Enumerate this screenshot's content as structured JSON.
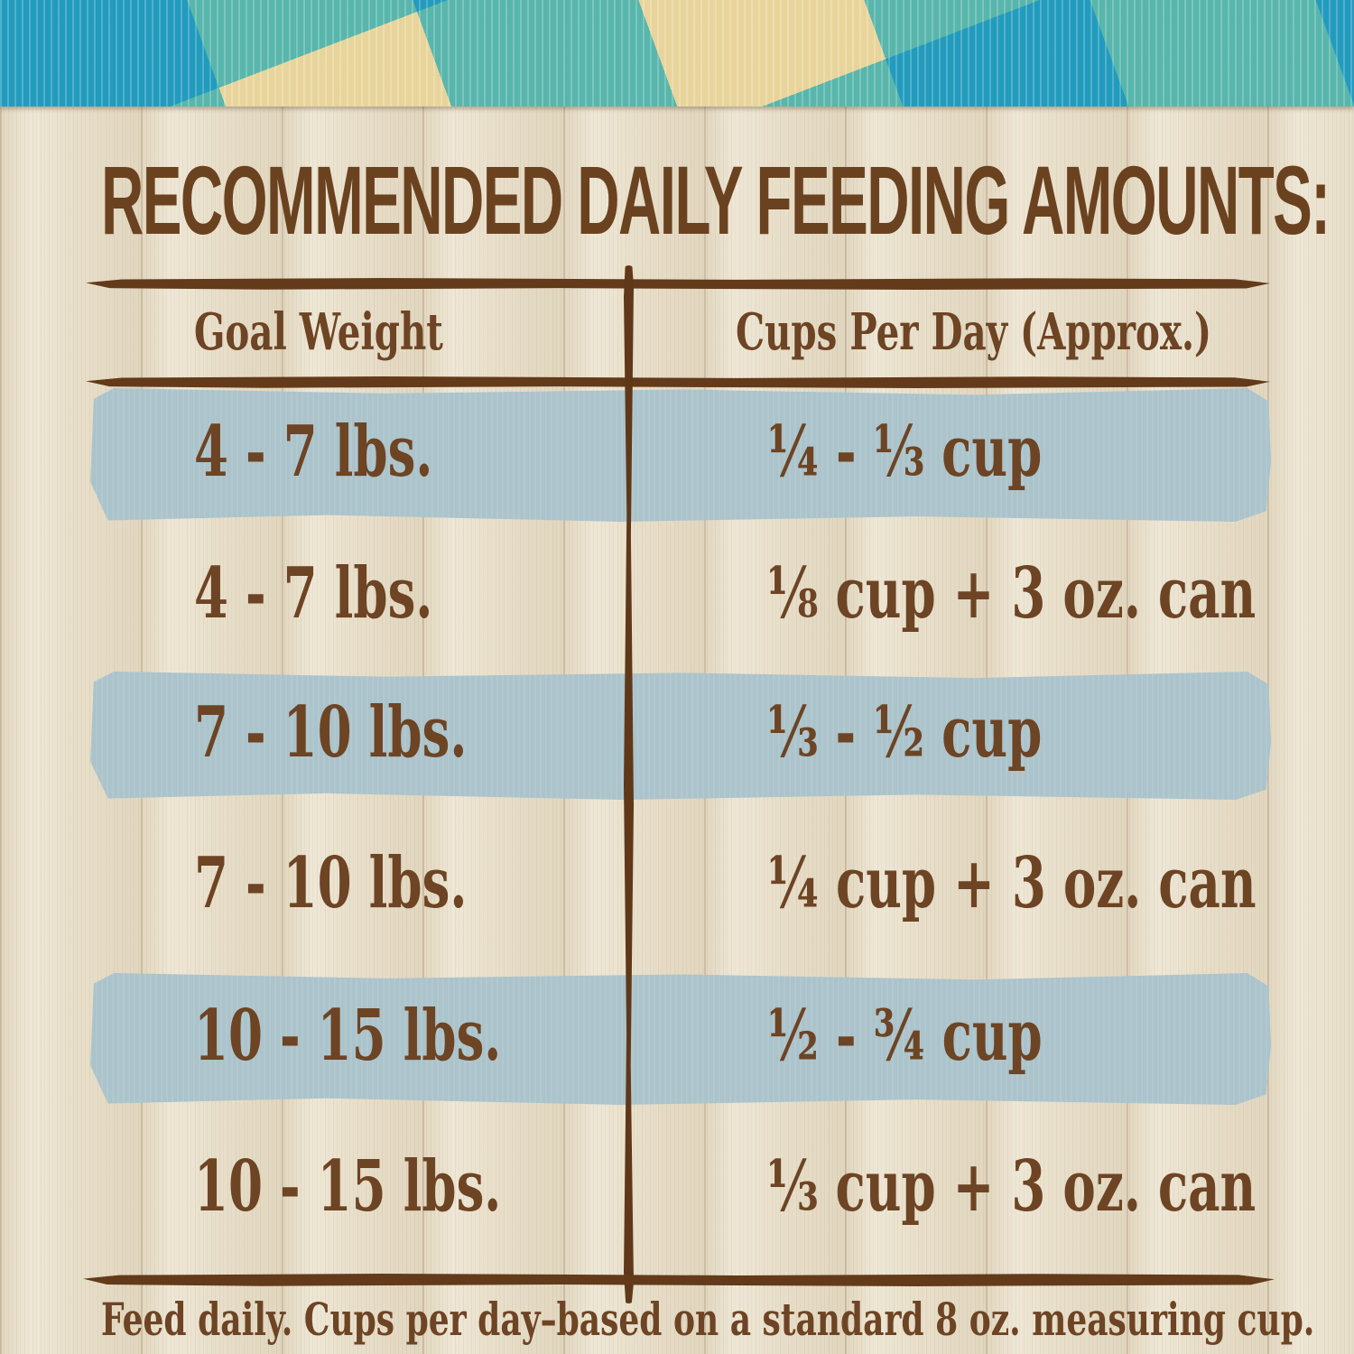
{
  "page": {
    "title": "RECOMMENDED DAILY FEEDING AMOUNTS:"
  },
  "table": {
    "columns": [
      {
        "label": "Goal Weight"
      },
      {
        "label": "Cups Per Day (Approx.)"
      }
    ],
    "rows": [
      {
        "goal_weight": "4 - 7 lbs.",
        "cups_per_day": "¼ - ⅓ cup",
        "highlighted": true
      },
      {
        "goal_weight": "4 - 7 lbs.",
        "cups_per_day": "⅛ cup + 3 oz. can",
        "highlighted": false
      },
      {
        "goal_weight": "7 - 10 lbs.",
        "cups_per_day": "⅓ - ½ cup",
        "highlighted": true
      },
      {
        "goal_weight": "7 - 10 lbs.",
        "cups_per_day": "¼ cup + 3 oz. can",
        "highlighted": false
      },
      {
        "goal_weight": "10 - 15 lbs.",
        "cups_per_day": "½ - ¾ cup",
        "highlighted": true
      },
      {
        "goal_weight": "10 - 15 lbs.",
        "cups_per_day": "⅓ cup + 3 oz. can",
        "highlighted": false
      }
    ]
  },
  "footnote": "Feed daily. Cups per day–based on a standard 8 oz. measuring cup.",
  "colors": {
    "text_brown": "#6d4424",
    "rule_brown": "#633a1a",
    "row_highlight_blue": "#abc3cb",
    "wood_cream": "#ebe3d0",
    "gingham_cream": "#f7f0d8",
    "gingham_light_blue": "#6ec9e6",
    "gingham_dark_blue": "#0090c4"
  }
}
